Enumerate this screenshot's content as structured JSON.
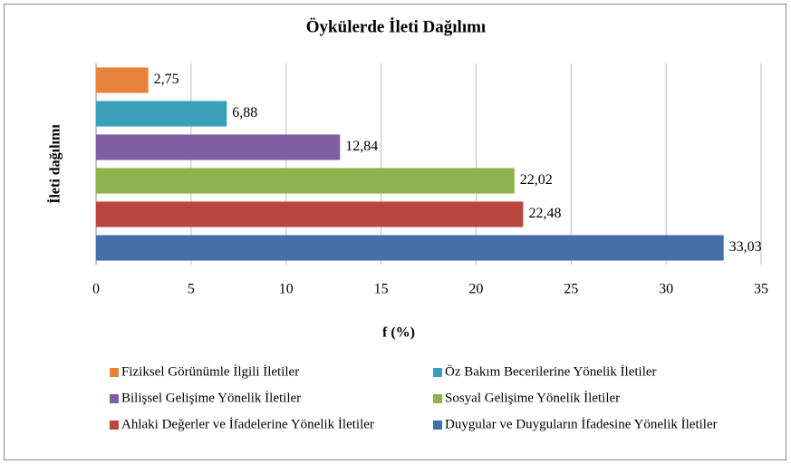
{
  "chart_data": {
    "type": "bar",
    "orientation": "horizontal",
    "title": "Öykülerde  İleti Dağılımı",
    "xlabel": "f (%)",
    "ylabel": "İleti dağılımı",
    "xlim": [
      0,
      35
    ],
    "xticks": [
      0,
      5,
      10,
      15,
      20,
      25,
      30,
      35
    ],
    "grid": true,
    "series": [
      {
        "name": "Fiziksel Görünümle İlgili İletiler",
        "color": "#e8823a",
        "values": [
          2.75
        ],
        "value_labels": [
          "2,75"
        ]
      },
      {
        "name": "Öz Bakım Becerilerine Yönelik İletiler",
        "color": "#3a9fb9",
        "values": [
          6.88
        ],
        "value_labels": [
          "6,88"
        ]
      },
      {
        "name": "Bilişsel Gelişime Yönelik İletiler",
        "color": "#7e5ea0",
        "values": [
          12.84
        ],
        "value_labels": [
          "12,84"
        ]
      },
      {
        "name": "Sosyal Gelişime Yönelik İletiler",
        "color": "#8fb24f",
        "values": [
          22.02
        ],
        "value_labels": [
          "22,02"
        ]
      },
      {
        "name": "Ahlaki Değerler ve İfadelerine Yönelik İletiler",
        "color": "#b9473f",
        "values": [
          22.48
        ],
        "value_labels": [
          "22,48"
        ]
      },
      {
        "name": "Duygular ve Duyguların İfadesine Yönelik İletiler",
        "color": "#4470aa",
        "values": [
          33.03
        ],
        "value_labels": [
          "33,03"
        ]
      }
    ]
  }
}
